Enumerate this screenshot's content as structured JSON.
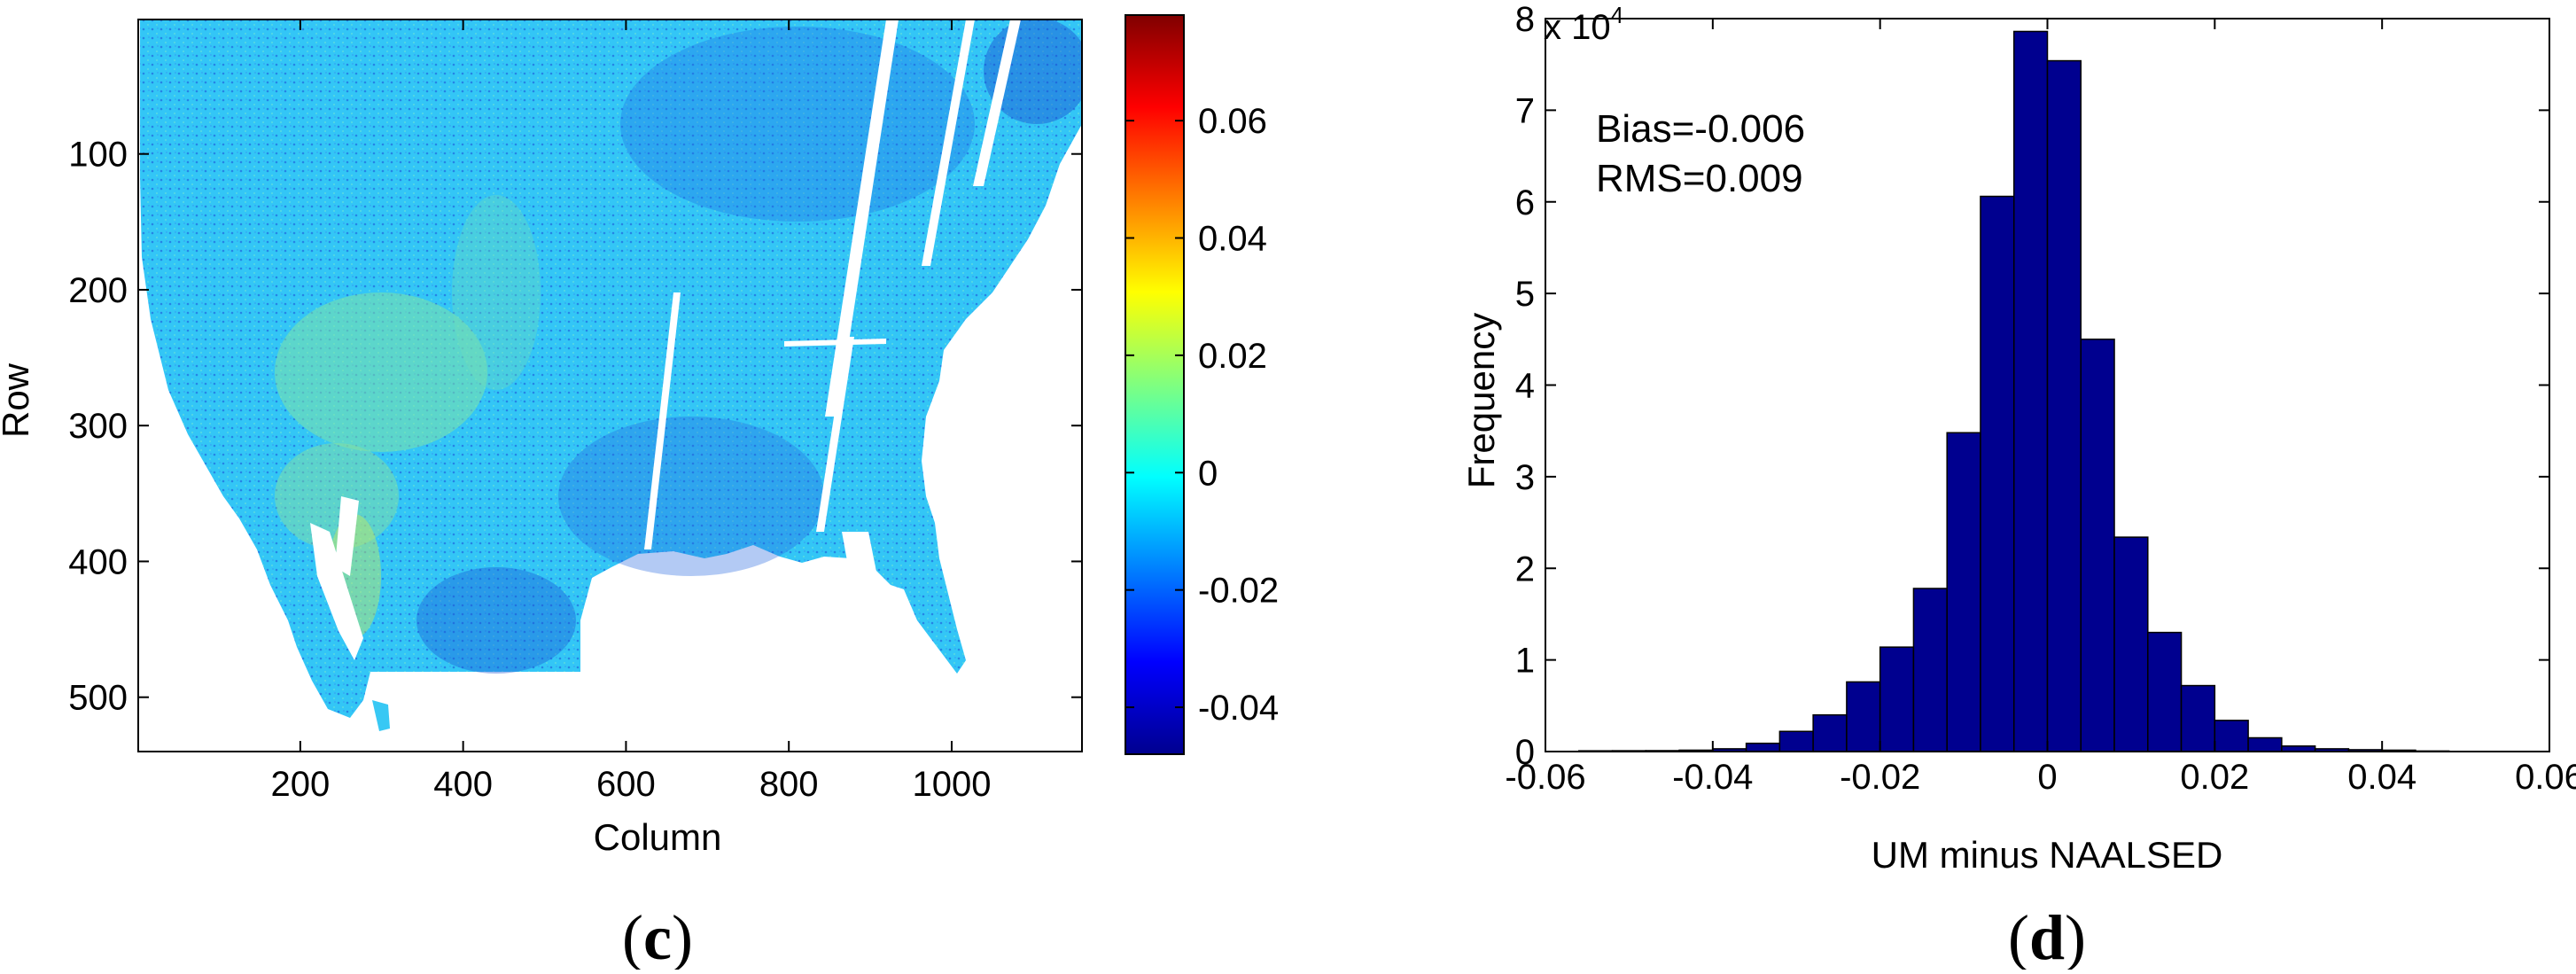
{
  "chart_data": [
    {
      "type": "heatmap",
      "panel_label": "(c)",
      "panel_letter": "c",
      "xlabel": "Column",
      "ylabel": "Row",
      "xlim": [
        1,
        1160
      ],
      "ylim": [
        540,
        1
      ],
      "xticks": [
        200,
        400,
        600,
        800,
        1000
      ],
      "yticks": [
        100,
        200,
        300,
        400,
        500
      ],
      "colormap": "jet",
      "colorbar": {
        "range": [
          -0.048,
          0.078
        ],
        "ticks": [
          -0.04,
          -0.02,
          0,
          0.02,
          0.04,
          0.06
        ],
        "tick_labels": [
          "-0.04",
          "-0.02",
          "0",
          "0.02",
          "0.04",
          "0.06"
        ]
      }
    },
    {
      "type": "bar",
      "panel_label": "(d)",
      "panel_letter": "d",
      "xlabel": "UM minus NAALSED",
      "ylabel": "Frequency",
      "exponent_label": "x 10",
      "exponent_sup": "4",
      "xlim": [
        -0.06,
        0.06
      ],
      "ylim": [
        0,
        80000
      ],
      "xticks": [
        -0.06,
        -0.04,
        -0.02,
        0,
        0.02,
        0.04,
        0.06
      ],
      "xtick_labels": [
        "-0.06",
        "-0.04",
        "-0.02",
        "0",
        "0.02",
        "0.04",
        "0.06"
      ],
      "yticks": [
        0,
        10000,
        20000,
        30000,
        40000,
        50000,
        60000,
        70000,
        80000
      ],
      "ytick_labels": [
        "0",
        "1",
        "2",
        "3",
        "4",
        "5",
        "6",
        "7",
        "8"
      ],
      "annotations": [
        "Bias=-0.006",
        "RMS=0.009"
      ],
      "bar_color": "#00008f",
      "bin_width": 0.004,
      "bin_centers": [
        -0.054,
        -0.05,
        -0.046,
        -0.042,
        -0.038,
        -0.034,
        -0.03,
        -0.026,
        -0.022,
        -0.018,
        -0.014,
        -0.01,
        -0.006,
        -0.002,
        0.002,
        0.006,
        0.01,
        0.014,
        0.018,
        0.022,
        0.026,
        0.03,
        0.034,
        0.038,
        0.042,
        0.046
      ],
      "values": [
        80,
        90,
        100,
        150,
        300,
        900,
        2200,
        4000,
        7600,
        11400,
        17800,
        34800,
        60600,
        78600,
        75400,
        45000,
        23400,
        13000,
        7200,
        3400,
        1500,
        600,
        300,
        200,
        150,
        60
      ]
    }
  ]
}
